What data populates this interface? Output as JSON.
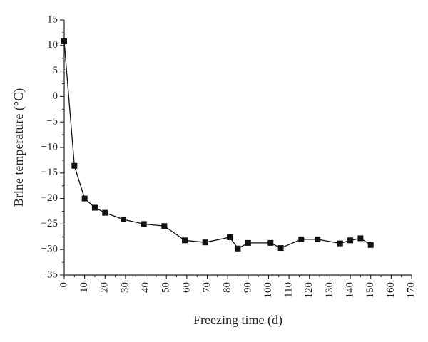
{
  "chart_data": {
    "type": "line",
    "title": "",
    "xlabel": "Freezing time (d)",
    "ylabel": "Brine temperature (°C)",
    "xlim": [
      0,
      170
    ],
    "ylim": [
      -35,
      15
    ],
    "x_ticks": [
      0,
      10,
      20,
      30,
      40,
      50,
      60,
      70,
      80,
      90,
      100,
      110,
      120,
      130,
      140,
      150,
      160,
      170
    ],
    "y_ticks": [
      15,
      10,
      5,
      0,
      -5,
      -10,
      -15,
      -20,
      -25,
      -30,
      -35
    ],
    "x_tick_labels": [
      "0",
      "10",
      "20",
      "30",
      "40",
      "50",
      "60",
      "70",
      "80",
      "90",
      "100",
      "110",
      "120",
      "130",
      "140",
      "150",
      "160",
      "170"
    ],
    "y_tick_labels": [
      "15",
      "10",
      "5",
      "0",
      "−5",
      "−10",
      "−15",
      "−20",
      "−25",
      "−30",
      "−35"
    ],
    "grid": false,
    "marker": "square",
    "colors": {
      "line": "#111111",
      "marker": "#111111",
      "axis": "#222222"
    },
    "series": [
      {
        "x": [
          0,
          5,
          10,
          15,
          20,
          29,
          39,
          49,
          59,
          69,
          81,
          85,
          90,
          101,
          106,
          116,
          124,
          135,
          140,
          145,
          150
        ],
        "y": [
          10.8,
          -13.6,
          -20.0,
          -21.8,
          -22.8,
          -24.1,
          -25.0,
          -25.4,
          -28.2,
          -28.6,
          -27.6,
          -29.8,
          -28.7,
          -28.7,
          -29.7,
          -28.0,
          -28.0,
          -28.8,
          -28.2,
          -27.8,
          -29.1
        ]
      }
    ]
  }
}
